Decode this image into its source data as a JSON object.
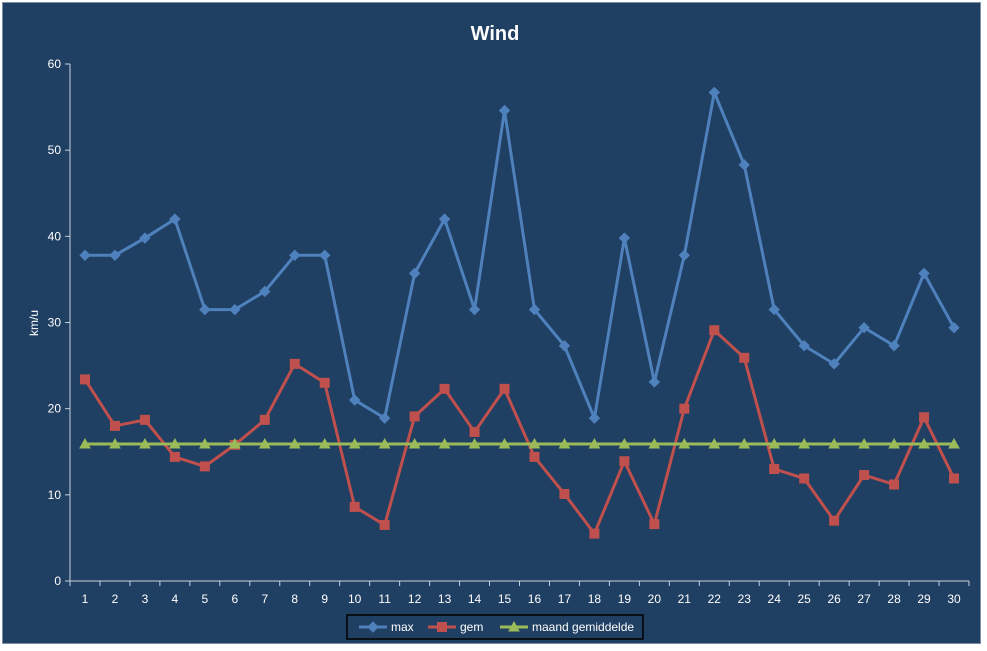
{
  "chart_data": {
    "type": "line",
    "title": "Wind",
    "xlabel": "",
    "ylabel": "km/u",
    "ylim": [
      0,
      60
    ],
    "yticks": [
      0,
      10,
      20,
      30,
      40,
      50,
      60
    ],
    "x": [
      1,
      2,
      3,
      4,
      5,
      6,
      7,
      8,
      9,
      10,
      11,
      12,
      13,
      14,
      15,
      16,
      17,
      18,
      19,
      20,
      21,
      22,
      23,
      24,
      25,
      26,
      27,
      28,
      29,
      30
    ],
    "grid": false,
    "legend_position": "bottom",
    "background_color": "#1f3f63",
    "series": [
      {
        "name": "max",
        "color": "#4f81bd",
        "marker": "diamond",
        "values": [
          37.8,
          37.8,
          39.8,
          42.0,
          31.5,
          31.5,
          33.6,
          37.8,
          37.8,
          21.0,
          18.9,
          35.7,
          42.0,
          31.5,
          54.6,
          31.5,
          27.3,
          18.9,
          39.8,
          23.1,
          37.8,
          56.7,
          48.3,
          31.5,
          27.3,
          25.2,
          29.4,
          27.3,
          35.7,
          29.4
        ]
      },
      {
        "name": "gem",
        "color": "#c0504d",
        "marker": "square",
        "values": [
          23.4,
          18.0,
          18.7,
          14.4,
          13.3,
          15.8,
          18.7,
          25.2,
          23.0,
          8.6,
          6.5,
          19.1,
          22.3,
          17.3,
          22.3,
          14.4,
          10.1,
          5.5,
          13.9,
          6.6,
          20.0,
          29.1,
          25.9,
          13.0,
          11.9,
          7.0,
          12.3,
          11.2,
          19.0,
          11.9
        ]
      },
      {
        "name": "maand gemiddelde",
        "color": "#9bbb59",
        "marker": "triangle",
        "values": [
          15.9,
          15.9,
          15.9,
          15.9,
          15.9,
          15.9,
          15.9,
          15.9,
          15.9,
          15.9,
          15.9,
          15.9,
          15.9,
          15.9,
          15.9,
          15.9,
          15.9,
          15.9,
          15.9,
          15.9,
          15.9,
          15.9,
          15.9,
          15.9,
          15.9,
          15.9,
          15.9,
          15.9,
          15.9,
          15.9
        ]
      }
    ]
  }
}
